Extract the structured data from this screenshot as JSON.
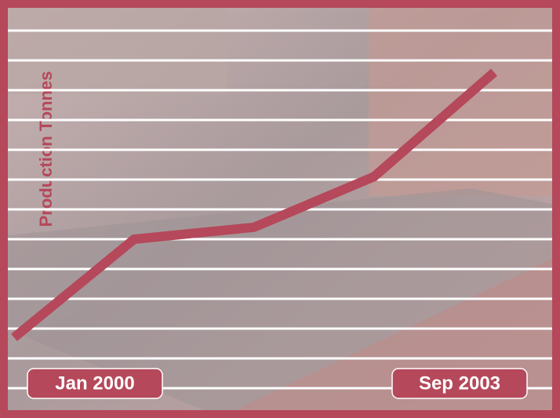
{
  "chart_data": {
    "type": "line",
    "y_label": "Production Tonnes",
    "categories": [
      "Jan 2000",
      null,
      null,
      null,
      "Sep 2003"
    ],
    "series": [
      {
        "name": "Production",
        "color": "#b5485a",
        "values": [
          1.7,
          5.0,
          5.4,
          7.1,
          10.6
        ]
      }
    ],
    "ylim": [
      0,
      12
    ],
    "yticks": [
      0,
      1,
      2,
      3,
      4,
      5,
      6,
      7,
      8,
      9,
      10,
      11,
      12
    ],
    "grid": true
  }
}
